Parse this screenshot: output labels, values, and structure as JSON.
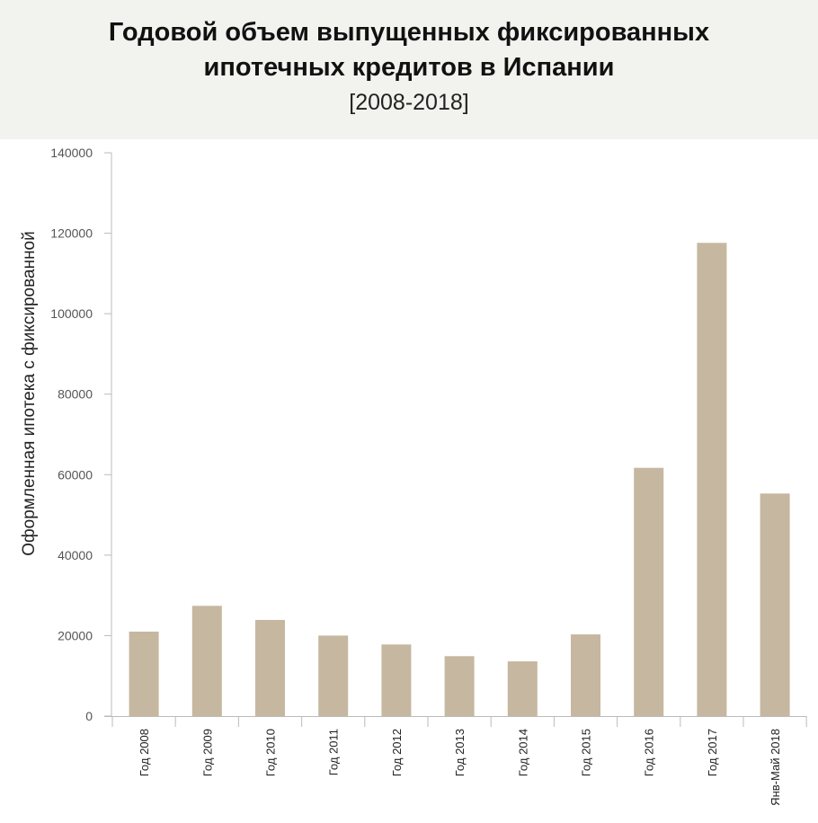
{
  "chart_data": {
    "type": "bar",
    "title_line1": "Годовой объем выпущенных фиксированных",
    "title_line2": "ипотечных кредитов в Испании",
    "subtitle": "[2008-2018]",
    "xlabel": "",
    "ylabel": "Оформленная ипотека с фиксированной",
    "categories": [
      "Год 2008",
      "Год 2009",
      "Год 2010",
      "Год 2011",
      "Год 2012",
      "Год 2013",
      "Год 2014",
      "Год 2015",
      "Год 2016",
      "Год 2017",
      "Янв-Май 2018"
    ],
    "values": [
      21000,
      27400,
      23900,
      20000,
      17800,
      14900,
      13600,
      20300,
      61700,
      117600,
      55300
    ],
    "ylim": [
      0,
      140000
    ],
    "yticks": [
      0,
      20000,
      40000,
      60000,
      80000,
      100000,
      120000,
      140000
    ],
    "grid": false,
    "legend": "none",
    "bar_color": "#c6b7a0",
    "axis_color": "#bbbbbb"
  }
}
